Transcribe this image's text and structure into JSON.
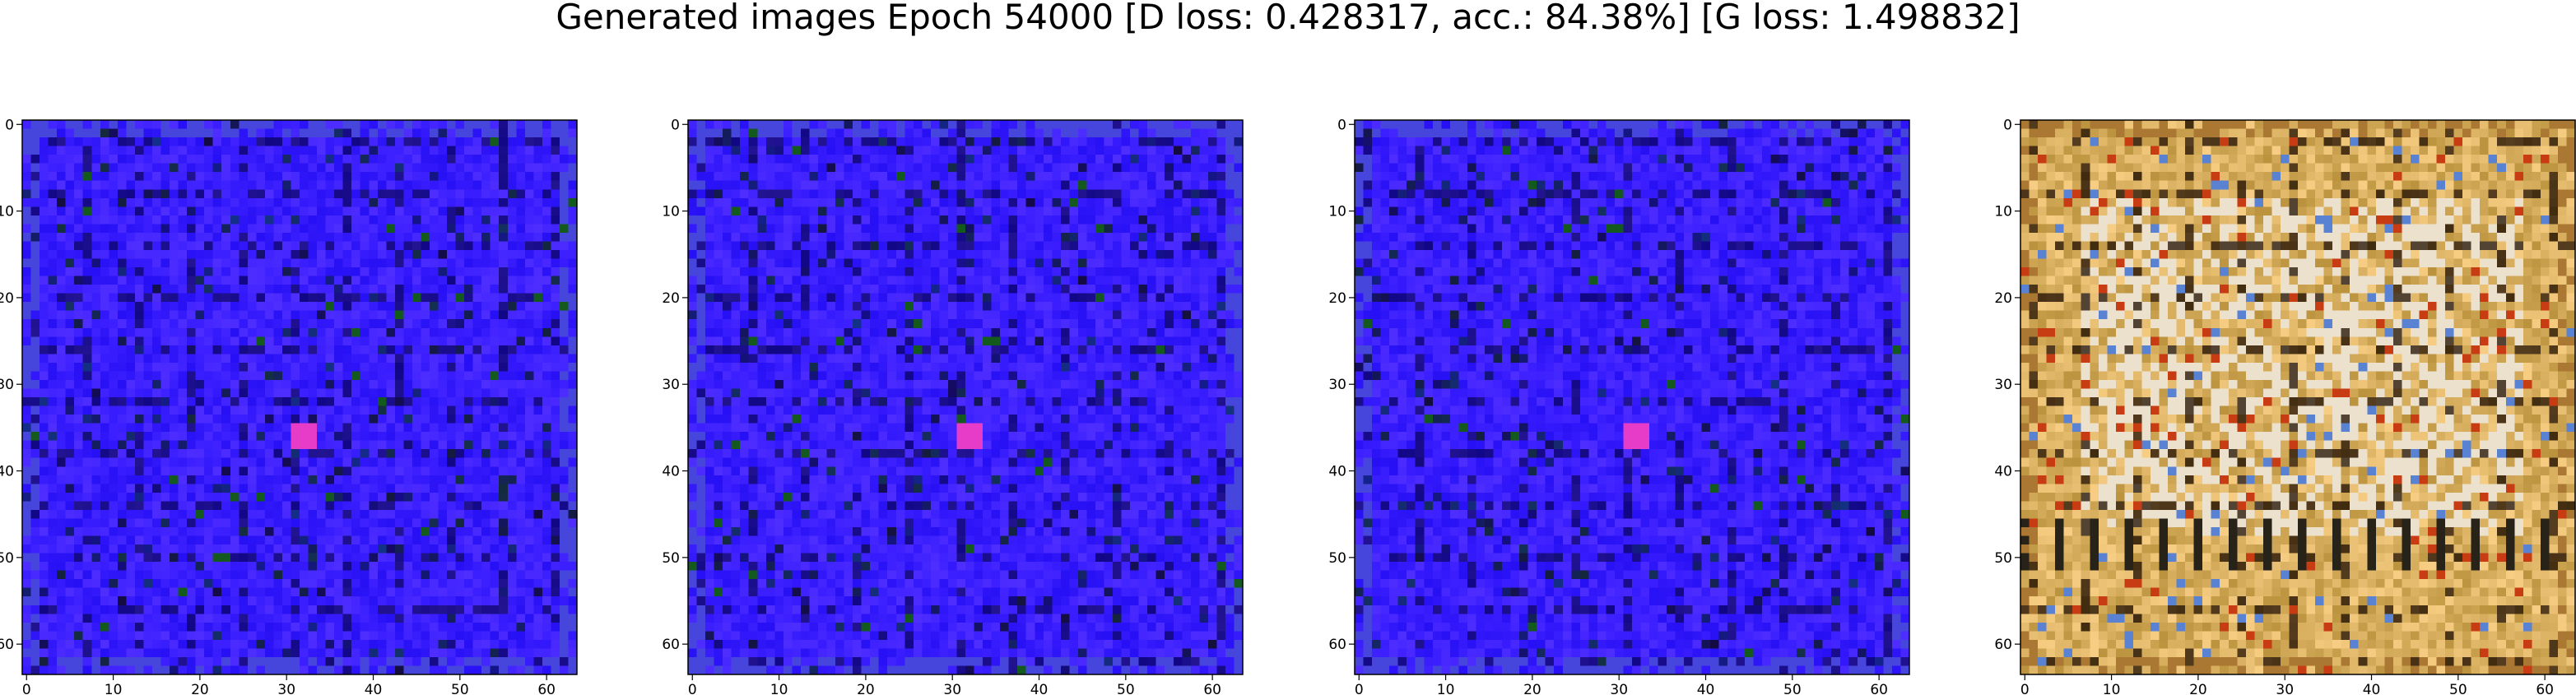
{
  "title": "Generated images Epoch 54000 [D loss: 0.428317, acc.: 84.38%] [G loss: 1.498832]",
  "panels": [
    {
      "name": "generated-image-1",
      "palette": "blue"
    },
    {
      "name": "generated-image-2",
      "palette": "blue"
    },
    {
      "name": "generated-image-3",
      "palette": "blue"
    },
    {
      "name": "generated-image-4",
      "palette": "gold"
    }
  ],
  "axes": {
    "xticks": [
      "0",
      "10",
      "20",
      "30",
      "40",
      "50",
      "60"
    ],
    "yticks": [
      "0",
      "10",
      "20",
      "30",
      "40",
      "50",
      "60"
    ],
    "x_range": [
      -0.5,
      63.5
    ],
    "y_range": [
      -0.5,
      63.5
    ],
    "image_size": 64
  },
  "colors": {
    "blue_base": "#3b1fff",
    "gold_base": "#d9b060"
  }
}
